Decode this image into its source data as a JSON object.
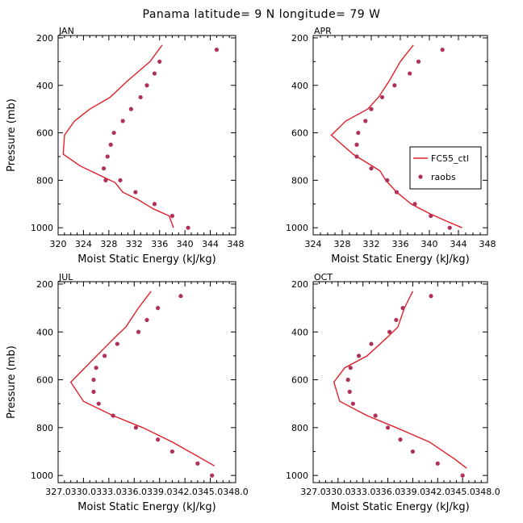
{
  "figure_title": "Panama  latitude= 9 N longitude= 79 W",
  "chart_data": [
    {
      "type": "line",
      "panel": "JAN",
      "title": "JAN",
      "xlabel": "Moist Static Energy (kJ/kg)",
      "ylabel": "Pressure (mb)",
      "xlim": [
        320,
        348
      ],
      "ylim": [
        1030,
        190
      ],
      "xticks": [
        320,
        324,
        328,
        332,
        336,
        340,
        344,
        348
      ],
      "xtick_labels": [
        "320",
        "324",
        "328",
        "332",
        "336",
        "340",
        "344",
        "348"
      ],
      "yticks": [
        200,
        400,
        600,
        800,
        1000
      ],
      "ytick_labels": [
        "200",
        "400",
        "600",
        "800",
        "1000"
      ],
      "show_xlabel": true,
      "show_ylabel": true,
      "series": [
        {
          "name": "FC55_ctl",
          "style": "line",
          "color": "#e0202a",
          "x": [
            336.4,
            334.5,
            331.0,
            328.2,
            325.0,
            322.6,
            321.0,
            320.8,
            323.5,
            329.0,
            330.2,
            332.5,
            335.0,
            337.5,
            338.2
          ],
          "y": [
            230,
            300,
            380,
            450,
            500,
            550,
            610,
            690,
            740,
            810,
            850,
            880,
            920,
            950,
            1000
          ]
        },
        {
          "name": "raobs",
          "style": "marker",
          "color": "#b0305a",
          "x": [
            345.0,
            336.0,
            335.2,
            334.0,
            333.0,
            331.5,
            330.2,
            328.8,
            328.3,
            327.8,
            327.2,
            327.5,
            329.8,
            332.2,
            335.2,
            338.0,
            340.5
          ],
          "y": [
            250,
            300,
            350,
            400,
            450,
            500,
            550,
            600,
            650,
            700,
            750,
            800,
            800,
            850,
            900,
            950,
            1000
          ]
        }
      ]
    },
    {
      "type": "line",
      "panel": "APR",
      "title": "APR",
      "xlabel": "Moist Static Energy (kJ/kg)",
      "ylabel": "",
      "xlim": [
        324,
        348
      ],
      "ylim": [
        1030,
        190
      ],
      "xticks": [
        324,
        328,
        332,
        336,
        340,
        344,
        348
      ],
      "xtick_labels": [
        "324",
        "328",
        "332",
        "336",
        "340",
        "344",
        "348"
      ],
      "yticks": [
        200,
        400,
        600,
        800,
        1000
      ],
      "ytick_labels": [
        "200",
        "400",
        "600",
        "800",
        "1000"
      ],
      "show_xlabel": true,
      "show_ylabel": false,
      "legend": {
        "position": "right",
        "entries": [
          "FC55_ctl",
          "raobs"
        ]
      },
      "series": [
        {
          "name": "FC55_ctl",
          "style": "line",
          "color": "#e0202a",
          "x": [
            337.8,
            336.0,
            334.5,
            333.0,
            331.5,
            328.5,
            326.5,
            329.5,
            333.2,
            334.0,
            335.5,
            337.5,
            340.0,
            342.2,
            344.5
          ],
          "y": [
            230,
            300,
            380,
            450,
            500,
            550,
            610,
            690,
            760,
            800,
            850,
            900,
            940,
            970,
            1000
          ]
        },
        {
          "name": "raobs",
          "style": "marker",
          "color": "#b0305a",
          "x": [
            341.8,
            338.5,
            337.3,
            335.2,
            333.5,
            332.0,
            331.2,
            330.2,
            330.0,
            330.0,
            332.0,
            334.2,
            335.5,
            338.0,
            340.2,
            342.8
          ],
          "y": [
            250,
            300,
            350,
            400,
            450,
            500,
            550,
            600,
            650,
            700,
            750,
            800,
            850,
            900,
            950,
            1000
          ]
        }
      ]
    },
    {
      "type": "line",
      "panel": "JUL",
      "title": "JUL",
      "xlabel": "Moist Static Energy (kJ/kg)",
      "ylabel": "Pressure (mb)",
      "xlim": [
        327.0,
        348.0
      ],
      "ylim": [
        1030,
        190
      ],
      "xticks": [
        327.0,
        330.0,
        333.0,
        336.0,
        339.0,
        342.0,
        345.0,
        348.0
      ],
      "xtick_labels": [
        "327.0",
        "330.0",
        "333.0",
        "336.0",
        "339.0",
        "342.0",
        "345.0",
        "348.0"
      ],
      "yticks": [
        200,
        400,
        600,
        800,
        1000
      ],
      "ytick_labels": [
        "200",
        "400",
        "600",
        "800",
        "1000"
      ],
      "show_xlabel": true,
      "show_ylabel": true,
      "series": [
        {
          "name": "FC55_ctl",
          "style": "line",
          "color": "#e0202a",
          "x": [
            338.0,
            336.5,
            335.0,
            333.8,
            331.0,
            328.5,
            330.0,
            333.5,
            337.0,
            340.5,
            343.5,
            345.5
          ],
          "y": [
            230,
            300,
            380,
            420,
            520,
            610,
            690,
            750,
            800,
            860,
            920,
            960
          ]
        },
        {
          "name": "raobs",
          "style": "marker",
          "color": "#b0305a",
          "x": [
            341.5,
            338.8,
            337.5,
            336.5,
            334.0,
            332.5,
            331.5,
            331.2,
            331.2,
            331.8,
            333.5,
            336.2,
            338.8,
            340.5,
            343.5,
            345.2
          ],
          "y": [
            250,
            300,
            350,
            400,
            450,
            500,
            550,
            600,
            650,
            700,
            750,
            800,
            850,
            900,
            950,
            1000
          ]
        }
      ]
    },
    {
      "type": "line",
      "panel": "OCT",
      "title": "OCT",
      "xlabel": "Moist Static Energy (kJ/kg)",
      "ylabel": "",
      "xlim": [
        327.0,
        348.0
      ],
      "ylim": [
        1030,
        190
      ],
      "xticks": [
        327.0,
        330.0,
        333.0,
        336.0,
        339.0,
        342.0,
        345.0,
        348.0
      ],
      "xtick_labels": [
        "327.0",
        "330.0",
        "333.0",
        "336.0",
        "339.0",
        "342.0",
        "345.0",
        "348.0"
      ],
      "yticks": [
        200,
        400,
        600,
        800,
        1000
      ],
      "ytick_labels": [
        "200",
        "400",
        "600",
        "800",
        "1000"
      ],
      "show_xlabel": true,
      "show_ylabel": false,
      "series": [
        {
          "name": "FC55_ctl",
          "style": "line",
          "color": "#e0202a",
          "x": [
            339.0,
            338.0,
            337.2,
            336.0,
            333.5,
            330.8,
            329.5,
            330.2,
            333.5,
            337.0,
            341.0,
            344.0,
            345.5
          ],
          "y": [
            230,
            300,
            380,
            420,
            500,
            550,
            610,
            690,
            750,
            800,
            860,
            930,
            970
          ]
        },
        {
          "name": "raobs",
          "style": "marker",
          "color": "#b0305a",
          "x": [
            341.2,
            337.8,
            337.0,
            336.2,
            334.0,
            332.5,
            331.5,
            331.2,
            331.4,
            331.8,
            334.5,
            336.0,
            337.5,
            339.0,
            342.0,
            345.0
          ],
          "y": [
            250,
            300,
            350,
            400,
            450,
            500,
            550,
            600,
            650,
            700,
            750,
            800,
            850,
            900,
            950,
            1000
          ]
        }
      ]
    }
  ]
}
